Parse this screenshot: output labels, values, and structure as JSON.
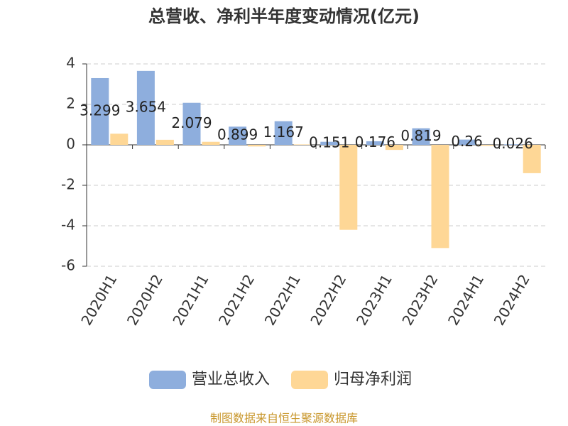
{
  "chart_data": {
    "type": "bar",
    "title": "总营收、净利半年度变动情况(亿元)",
    "categories": [
      "2020H1",
      "2020H2",
      "2021H1",
      "2021H2",
      "2022H1",
      "2022H2",
      "2023H1",
      "2023H2",
      "2024H1",
      "2024H2"
    ],
    "series": [
      {
        "name": "营业总收入",
        "color": "#8eaedd",
        "values": [
          3.299,
          3.654,
          2.079,
          0.899,
          1.167,
          0.151,
          0.176,
          0.819,
          0.26,
          0.026
        ],
        "show_labels": true
      },
      {
        "name": "归母净利润",
        "color": "#fed796",
        "values": [
          0.55,
          0.25,
          0.15,
          -0.08,
          0.02,
          -4.2,
          -0.25,
          -5.1,
          -0.05,
          -1.4
        ],
        "show_labels": false
      }
    ],
    "ylim": [
      -6,
      4
    ],
    "yticks": [
      -6,
      -4,
      -2,
      0,
      2,
      4
    ],
    "grid": true,
    "legend": "bottom",
    "source": "制图数据来自恒生聚源数据库"
  }
}
